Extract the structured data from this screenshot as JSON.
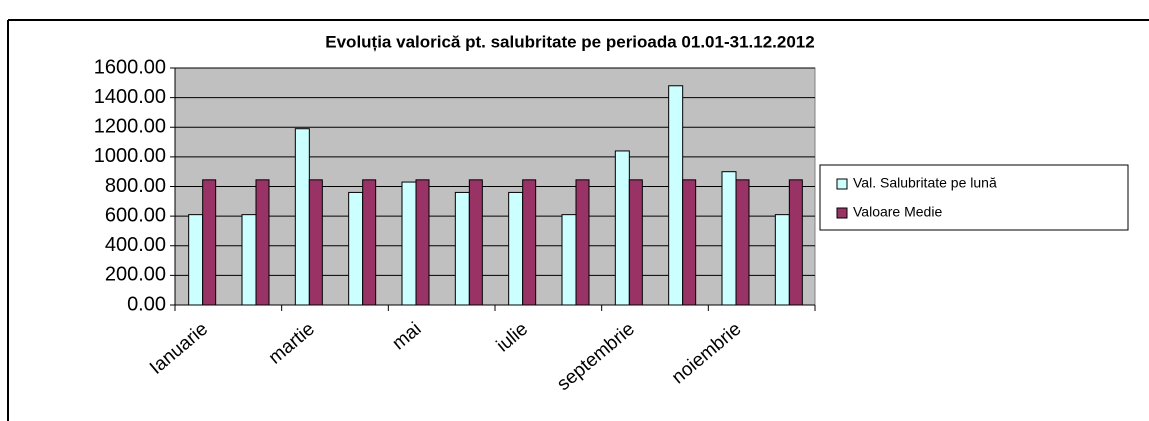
{
  "chart_data": {
    "type": "bar",
    "title": "Evoluția valorică pt. salubritate pe perioada 01.01-31.12.2012",
    "categories": [
      "Ianuarie",
      null,
      "martie",
      null,
      "mai",
      null,
      "iulie",
      null,
      "septembrie",
      null,
      "noiembrie",
      null
    ],
    "series": [
      {
        "name": "Val. Salubritate pe lună",
        "color": "#ccffff",
        "values": [
          610,
          610,
          1190,
          760,
          830,
          760,
          760,
          610,
          1040,
          1480,
          900,
          610
        ]
      },
      {
        "name": "Valoare Medie",
        "color": "#993366",
        "values": [
          845,
          845,
          845,
          845,
          845,
          845,
          845,
          845,
          845,
          845,
          845,
          845
        ]
      }
    ],
    "ylim": [
      0,
      1600
    ],
    "yticks": [
      {
        "value": 0,
        "label": "0.00"
      },
      {
        "value": 200,
        "label": "200.00"
      },
      {
        "value": 400,
        "label": "400.00"
      },
      {
        "value": 600,
        "label": "600.00"
      },
      {
        "value": 800,
        "label": "800.00"
      },
      {
        "value": 1000,
        "label": "1000.00"
      },
      {
        "value": 1200,
        "label": "1200.00"
      },
      {
        "value": 1400,
        "label": "1400.00"
      },
      {
        "value": 1600,
        "label": "1600.00"
      }
    ],
    "grid": true,
    "legend": "right"
  }
}
